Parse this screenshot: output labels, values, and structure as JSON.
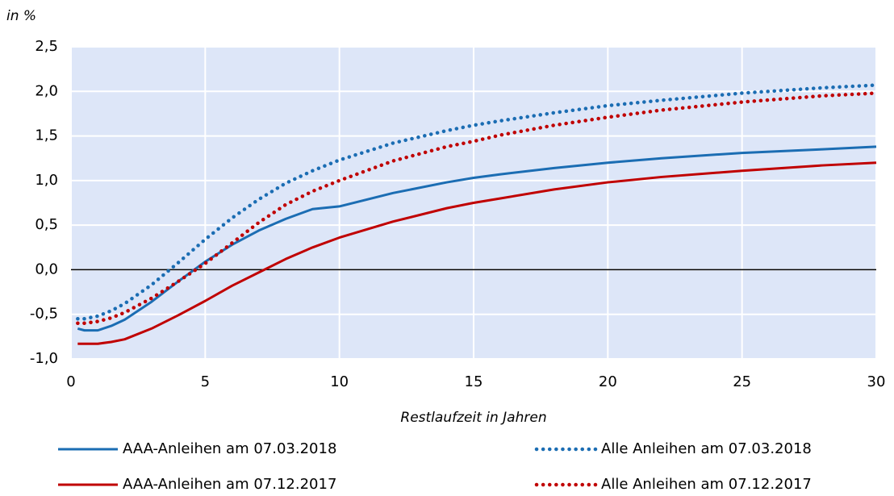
{
  "chart_data": {
    "type": "line",
    "y_label": "in %",
    "x_label": "Restlaufzeit in Jahren",
    "x": [
      0.25,
      0.5,
      1,
      1.5,
      2,
      3,
      4,
      5,
      6,
      7,
      8,
      9,
      10,
      12,
      14,
      15,
      16,
      18,
      20,
      22,
      25,
      28,
      30
    ],
    "series": [
      {
        "name": "AAA-Anleihen am 07.03.2018",
        "color": "#1b6db3",
        "dash": "solid",
        "values": [
          -0.66,
          -0.68,
          -0.68,
          -0.63,
          -0.56,
          -0.36,
          -0.13,
          0.09,
          0.28,
          0.44,
          0.57,
          0.68,
          0.71,
          0.86,
          0.98,
          1.03,
          1.07,
          1.14,
          1.2,
          1.25,
          1.31,
          1.35,
          1.38
        ]
      },
      {
        "name": "Alle Anleihen am 07.03.2018",
        "color": "#1b6db3",
        "dash": "dotted",
        "values": [
          -0.55,
          -0.55,
          -0.52,
          -0.46,
          -0.38,
          -0.17,
          0.08,
          0.34,
          0.58,
          0.79,
          0.97,
          1.11,
          1.23,
          1.42,
          1.56,
          1.62,
          1.67,
          1.76,
          1.84,
          1.9,
          1.98,
          2.04,
          2.07
        ]
      },
      {
        "name": "AAA-Anleihen am 07.12.2017",
        "color": "#c00000",
        "dash": "solid",
        "values": [
          -0.83,
          -0.83,
          -0.83,
          -0.81,
          -0.78,
          -0.66,
          -0.51,
          -0.35,
          -0.18,
          -0.03,
          0.12,
          0.25,
          0.36,
          0.54,
          0.69,
          0.75,
          0.8,
          0.9,
          0.98,
          1.04,
          1.11,
          1.17,
          1.2
        ]
      },
      {
        "name": "Alle Anleihen am 07.12.2017",
        "color": "#c00000",
        "dash": "dotted",
        "values": [
          -0.6,
          -0.6,
          -0.58,
          -0.54,
          -0.48,
          -0.32,
          -0.13,
          0.07,
          0.3,
          0.53,
          0.73,
          0.88,
          1.0,
          1.22,
          1.38,
          1.44,
          1.51,
          1.62,
          1.71,
          1.79,
          1.88,
          1.95,
          1.98
        ]
      }
    ],
    "xlim": [
      0,
      30
    ],
    "xticks": [
      0,
      5,
      10,
      15,
      20,
      25,
      30
    ],
    "ylim": [
      -1,
      2.5
    ],
    "yticks": [
      {
        "value": -1,
        "label": "-1,0"
      },
      {
        "value": -0.5,
        "label": "-0,5"
      },
      {
        "value": 0,
        "label": "0,0"
      },
      {
        "value": 0.5,
        "label": "0,5"
      },
      {
        "value": 1,
        "label": "1,0"
      },
      {
        "value": 1.5,
        "label": "1,5"
      },
      {
        "value": 2,
        "label": "2,0"
      },
      {
        "value": 2.5,
        "label": "2,5"
      }
    ],
    "grid": true,
    "legend": "bottom"
  }
}
